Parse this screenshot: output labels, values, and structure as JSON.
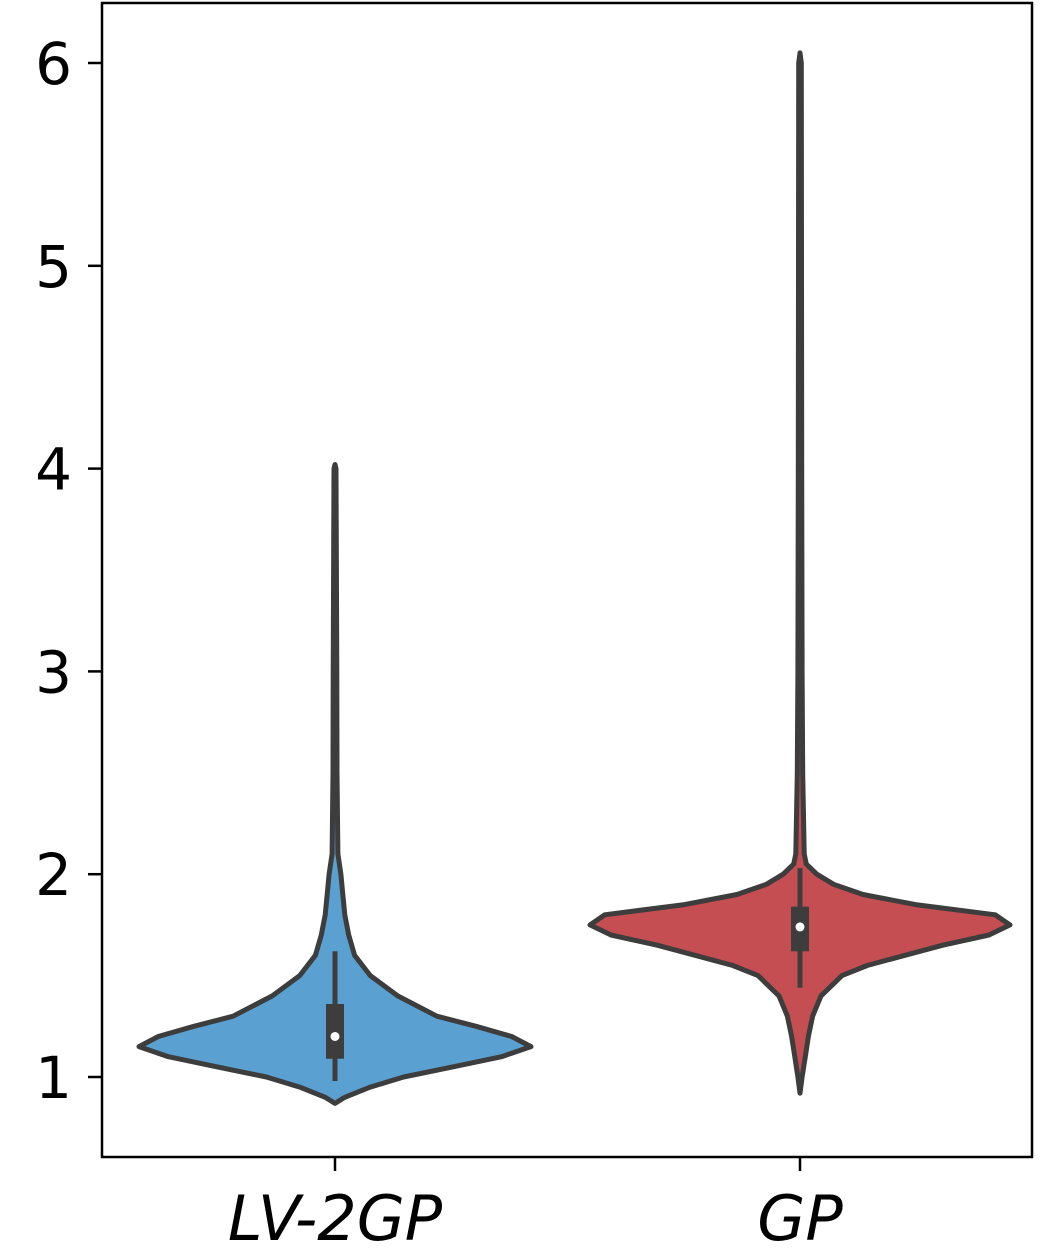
{
  "chart_data": {
    "type": "violin",
    "title": "",
    "xlabel": "",
    "ylabel": "",
    "categories": [
      "LV-2GP",
      "GP"
    ],
    "ylim": [
      0.7,
      6.3
    ],
    "yticks": [
      1,
      2,
      3,
      4,
      5,
      6
    ],
    "ytick_labels": [
      "1",
      "2",
      "3",
      "4",
      "5",
      "6"
    ],
    "grid": false,
    "legend": "none",
    "series": [
      {
        "category": "LV-2GP",
        "color": "#5aa1d1",
        "min": 0.87,
        "max": 4.02,
        "q1": 1.09,
        "median": 1.2,
        "q3": 1.36,
        "whisker_low": 0.98,
        "whisker_high": 1.62,
        "density_profile": [
          [
            0.87,
            0.0
          ],
          [
            0.9,
            0.05
          ],
          [
            0.95,
            0.18
          ],
          [
            1.0,
            0.35
          ],
          [
            1.05,
            0.6
          ],
          [
            1.1,
            0.85
          ],
          [
            1.15,
            1.0
          ],
          [
            1.2,
            0.9
          ],
          [
            1.25,
            0.72
          ],
          [
            1.3,
            0.52
          ],
          [
            1.4,
            0.32
          ],
          [
            1.5,
            0.18
          ],
          [
            1.6,
            0.1
          ],
          [
            1.7,
            0.07
          ],
          [
            1.8,
            0.05
          ],
          [
            1.9,
            0.04
          ],
          [
            2.0,
            0.03
          ],
          [
            2.1,
            0.015
          ],
          [
            2.5,
            0.01
          ],
          [
            3.0,
            0.009
          ],
          [
            3.5,
            0.007
          ],
          [
            4.0,
            0.005
          ],
          [
            4.02,
            0.0
          ]
        ]
      },
      {
        "category": "GP",
        "color": "#c44e52",
        "min": 0.92,
        "max": 6.05,
        "q1": 1.62,
        "median": 1.74,
        "q3": 1.84,
        "whisker_low": 1.44,
        "whisker_high": 2.03,
        "density_profile": [
          [
            0.92,
            0.0
          ],
          [
            1.0,
            0.01
          ],
          [
            1.1,
            0.025
          ],
          [
            1.2,
            0.04
          ],
          [
            1.3,
            0.06
          ],
          [
            1.4,
            0.1
          ],
          [
            1.5,
            0.2
          ],
          [
            1.55,
            0.32
          ],
          [
            1.6,
            0.5
          ],
          [
            1.65,
            0.68
          ],
          [
            1.7,
            0.9
          ],
          [
            1.75,
            1.0
          ],
          [
            1.8,
            0.93
          ],
          [
            1.85,
            0.55
          ],
          [
            1.9,
            0.3
          ],
          [
            1.95,
            0.16
          ],
          [
            2.0,
            0.08
          ],
          [
            2.05,
            0.03
          ],
          [
            2.1,
            0.02
          ],
          [
            2.5,
            0.013
          ],
          [
            3.0,
            0.01
          ],
          [
            3.5,
            0.009
          ],
          [
            4.0,
            0.008
          ],
          [
            5.0,
            0.007
          ],
          [
            6.0,
            0.006
          ],
          [
            6.05,
            0.0
          ]
        ]
      }
    ]
  }
}
